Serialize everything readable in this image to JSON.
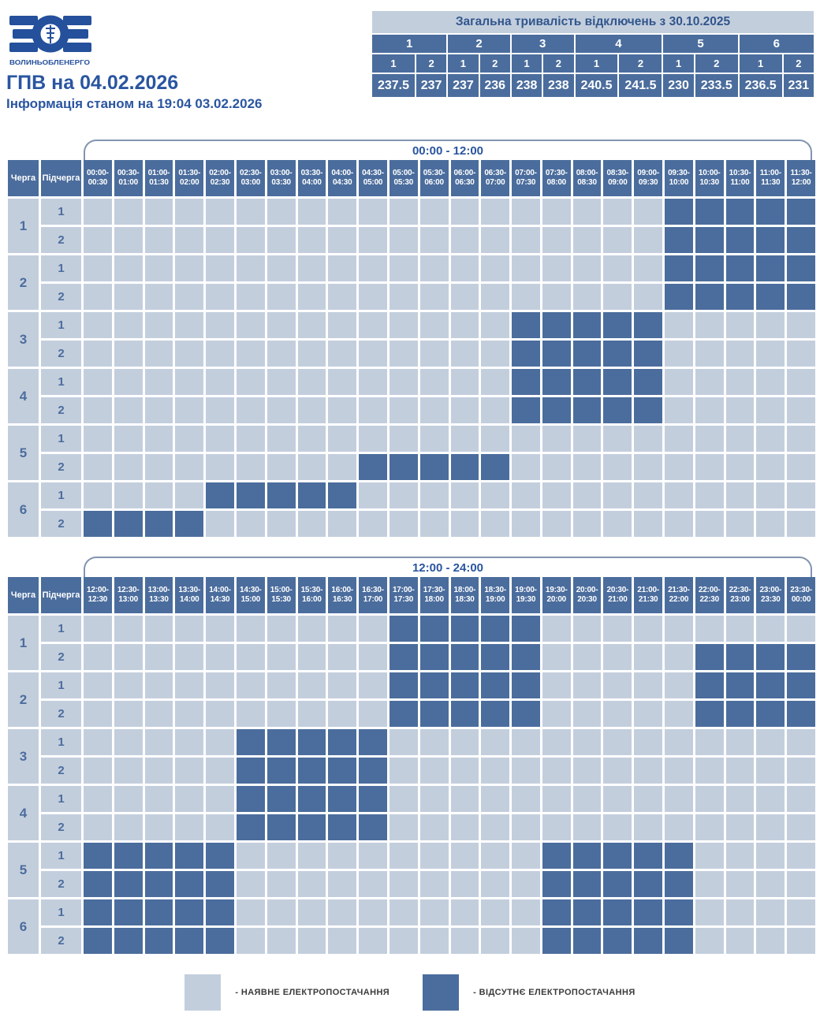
{
  "logo": {
    "brand_abbreviation": "ВОЕ",
    "brand_name": "ВОЛИНЬОБЛЕНЕРГО"
  },
  "header": {
    "title": "ГПВ на 04.02.2026",
    "status": "Інформація станом на 19:04 03.02.2026"
  },
  "ui": {
    "queue_column_label": "Черга",
    "subqueue_column_label": "Підчерга"
  },
  "legend": {
    "available_label": "- НАЯВНЕ ЕЛЕКТРОПОСТАЧАННЯ",
    "absent_label": "- ВІДСУТНЄ ЕЛЕКТРОПОСТАЧАННЯ"
  },
  "colors": {
    "power_on": "#c3cedd",
    "power_off": "#4b6d9d",
    "accent_text": "#2a55a0"
  },
  "chart_data": {
    "type": "heatmap",
    "title": "ГПВ на 04.02.2026",
    "cell_encoding": {
      "0": "наявне електропостачання",
      "1": "відсутнє електропостачання"
    },
    "summary": {
      "title": "Загальна тривалість відключень з 30.10.2025",
      "queues": [
        "1",
        "2",
        "3",
        "4",
        "5",
        "6"
      ],
      "subqueues": [
        "1",
        "2"
      ],
      "hours": [
        "237.5",
        "237",
        "237",
        "236",
        "238",
        "238",
        "240.5",
        "241.5",
        "230",
        "233.5",
        "236.5",
        "231"
      ]
    },
    "grids": [
      {
        "period": "00:00 - 12:00",
        "time_slots": [
          "00:00-00:30",
          "00:30-01:00",
          "01:00-01:30",
          "01:30-02:00",
          "02:00-02:30",
          "02:30-03:00",
          "03:00-03:30",
          "03:30-04:00",
          "04:00-04:30",
          "04:30-05:00",
          "05:00-05:30",
          "05:30-06:00",
          "06:00-06:30",
          "06:30-07:00",
          "07:00-07:30",
          "07:30-08:00",
          "08:00-08:30",
          "08:30-09:00",
          "09:00-09:30",
          "09:30-10:00",
          "10:00-10:30",
          "10:30-11:00",
          "11:00-11:30",
          "11:30-12:00"
        ],
        "rows": [
          {
            "queue": "1",
            "subqueue": "1",
            "cells": "000000000000000000011111"
          },
          {
            "queue": "1",
            "subqueue": "2",
            "cells": "000000000000000000011111"
          },
          {
            "queue": "2",
            "subqueue": "1",
            "cells": "000000000000000000011111"
          },
          {
            "queue": "2",
            "subqueue": "2",
            "cells": "000000000000000000011111"
          },
          {
            "queue": "3",
            "subqueue": "1",
            "cells": "000000000000001111100000"
          },
          {
            "queue": "3",
            "subqueue": "2",
            "cells": "000000000000001111100000"
          },
          {
            "queue": "4",
            "subqueue": "1",
            "cells": "000000000000001111100000"
          },
          {
            "queue": "4",
            "subqueue": "2",
            "cells": "000000000000001111100000"
          },
          {
            "queue": "5",
            "subqueue": "1",
            "cells": "000000000000000000000000"
          },
          {
            "queue": "5",
            "subqueue": "2",
            "cells": "000000000111110000000000"
          },
          {
            "queue": "6",
            "subqueue": "1",
            "cells": "000011111000000000000000"
          },
          {
            "queue": "6",
            "subqueue": "2",
            "cells": "111100000000000000000000"
          }
        ]
      },
      {
        "period": "12:00 - 24:00",
        "time_slots": [
          "12:00-12:30",
          "12:30-13:00",
          "13:00-13:30",
          "13:30-14:00",
          "14:00-14:30",
          "14:30-15:00",
          "15:00-15:30",
          "15:30-16:00",
          "16:00-16:30",
          "16:30-17:00",
          "17:00-17:30",
          "17:30-18:00",
          "18:00-18:30",
          "18:30-19:00",
          "19:00-19:30",
          "19:30-20:00",
          "20:00-20:30",
          "20:30-21:00",
          "21:00-21:30",
          "21:30-22:00",
          "22:00-22:30",
          "22:30-23:00",
          "23:00-23:30",
          "23:30-00:00"
        ],
        "rows": [
          {
            "queue": "1",
            "subqueue": "1",
            "cells": "000000000011111000000000"
          },
          {
            "queue": "1",
            "subqueue": "2",
            "cells": "000000000011111000001111"
          },
          {
            "queue": "2",
            "subqueue": "1",
            "cells": "000000000011111000001111"
          },
          {
            "queue": "2",
            "subqueue": "2",
            "cells": "000000000011111000001111"
          },
          {
            "queue": "3",
            "subqueue": "1",
            "cells": "000001111100000000000000"
          },
          {
            "queue": "3",
            "subqueue": "2",
            "cells": "000001111100000000000000"
          },
          {
            "queue": "4",
            "subqueue": "1",
            "cells": "000001111100000000000000"
          },
          {
            "queue": "4",
            "subqueue": "2",
            "cells": "000001111100000000000000"
          },
          {
            "queue": "5",
            "subqueue": "1",
            "cells": "111110000000000111110000"
          },
          {
            "queue": "5",
            "subqueue": "2",
            "cells": "111110000000000111110000"
          },
          {
            "queue": "6",
            "subqueue": "1",
            "cells": "111110000000000111110000"
          },
          {
            "queue": "6",
            "subqueue": "2",
            "cells": "111110000000000111110000"
          }
        ]
      }
    ]
  }
}
